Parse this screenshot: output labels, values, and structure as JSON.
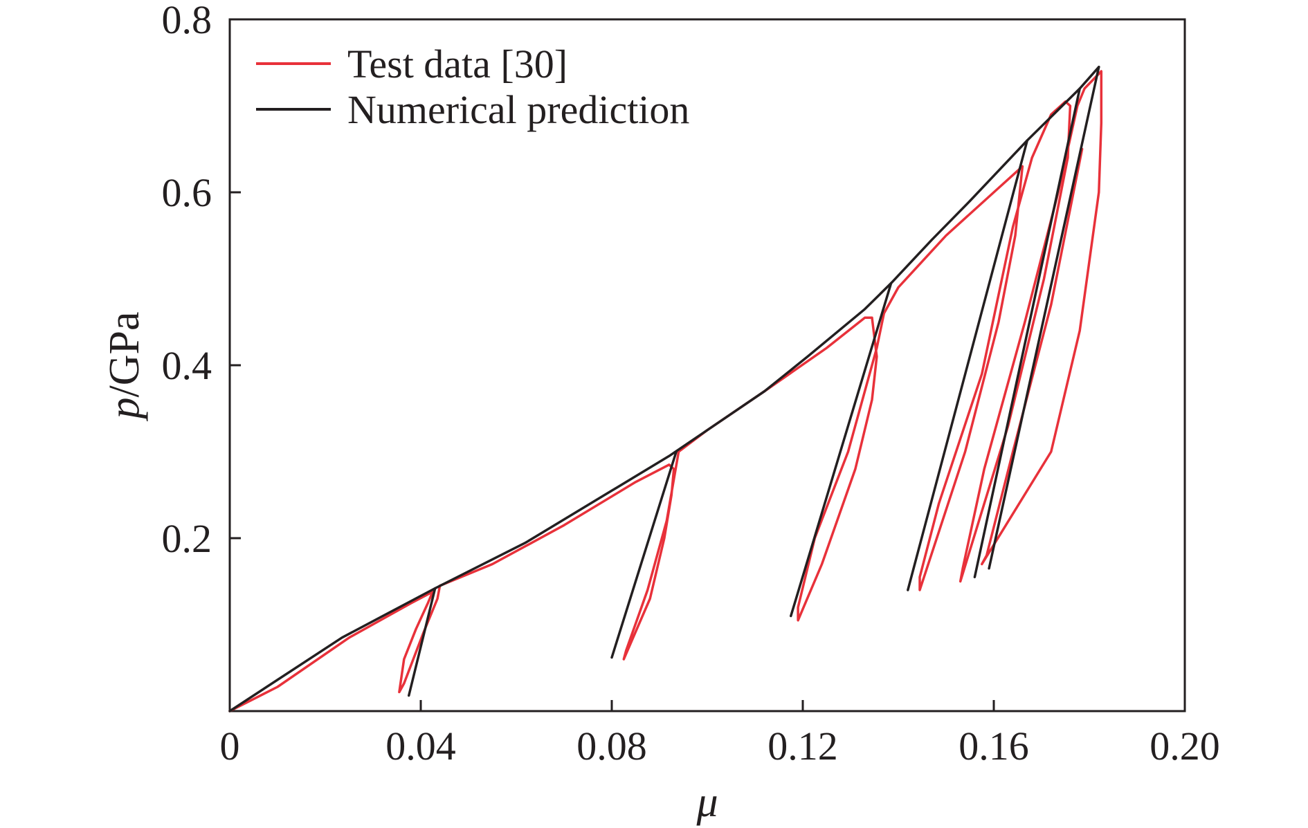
{
  "chart_data": {
    "type": "line",
    "xlabel_var": "μ",
    "xlabel_unit": "",
    "ylabel_var": "p",
    "ylabel_unit": "/GPa",
    "xlim": [
      0,
      0.2
    ],
    "ylim": [
      0,
      0.8
    ],
    "x_ticks": [
      0,
      0.04,
      0.08,
      0.12,
      0.16,
      0.2
    ],
    "x_tick_labels": [
      "0",
      "0.04",
      "0.08",
      "0.12",
      "0.16",
      "0.20"
    ],
    "y_ticks": [
      0.2,
      0.4,
      0.6,
      0.8
    ],
    "y_tick_labels": [
      "0.2",
      "0.4",
      "0.6",
      "0.8"
    ],
    "grid": false,
    "legend_position": "top-left",
    "series": [
      {
        "name": "Test data [30]",
        "color": "#e8313a",
        "x": [
          0.0,
          0.01,
          0.025,
          0.038,
          0.0425,
          0.0415,
          0.039,
          0.0365,
          0.0355,
          0.0365,
          0.0405,
          0.0435,
          0.044,
          0.055,
          0.07,
          0.085,
          0.092,
          0.093,
          0.0925,
          0.091,
          0.088,
          0.0825,
          0.083,
          0.0875,
          0.0915,
          0.094,
          0.1,
          0.112,
          0.125,
          0.133,
          0.1345,
          0.1355,
          0.1345,
          0.131,
          0.124,
          0.119,
          0.119,
          0.1225,
          0.1295,
          0.1355,
          0.137,
          0.14,
          0.15,
          0.16,
          0.165,
          0.166,
          0.1645,
          0.161,
          0.154,
          0.1445,
          0.1445,
          0.1485,
          0.1575,
          0.164,
          0.168,
          0.172,
          0.175,
          0.176,
          0.1755,
          0.1705,
          0.163,
          0.153,
          0.1535,
          0.158,
          0.1665,
          0.1735,
          0.1775,
          0.179,
          0.1825,
          0.1825,
          0.182,
          0.178,
          0.172,
          0.1575,
          0.1585,
          0.164,
          0.172,
          0.1785
        ],
        "y": [
          0.0,
          0.028,
          0.085,
          0.125,
          0.138,
          0.125,
          0.095,
          0.06,
          0.022,
          0.032,
          0.09,
          0.13,
          0.145,
          0.17,
          0.215,
          0.265,
          0.285,
          0.28,
          0.25,
          0.2,
          0.13,
          0.06,
          0.07,
          0.14,
          0.22,
          0.3,
          0.325,
          0.37,
          0.42,
          0.455,
          0.455,
          0.41,
          0.36,
          0.28,
          0.17,
          0.105,
          0.12,
          0.2,
          0.3,
          0.42,
          0.46,
          0.49,
          0.55,
          0.6,
          0.625,
          0.63,
          0.55,
          0.45,
          0.3,
          0.14,
          0.155,
          0.24,
          0.39,
          0.56,
          0.64,
          0.69,
          0.705,
          0.7,
          0.64,
          0.5,
          0.33,
          0.15,
          0.165,
          0.28,
          0.45,
          0.6,
          0.7,
          0.72,
          0.74,
          0.68,
          0.6,
          0.44,
          0.3,
          0.17,
          0.18,
          0.3,
          0.47,
          0.65
        ]
      },
      {
        "name": "Numerical prediction",
        "color": "#231f20",
        "x": [
          0.0,
          0.0235,
          0.043,
          0.062,
          0.08,
          0.092,
          0.1,
          0.112,
          0.121,
          0.133,
          0.1385,
          0.147,
          0.155,
          0.167,
          0.178,
          0.182
        ],
        "y": [
          0.0,
          0.085,
          0.142,
          0.195,
          0.255,
          0.295,
          0.325,
          0.37,
          0.41,
          0.465,
          0.495,
          0.545,
          0.59,
          0.66,
          0.72,
          0.745
        ]
      }
    ],
    "unloading_segments": [
      {
        "x": [
          0.043,
          0.0375
        ],
        "y": [
          0.142,
          0.018
        ]
      },
      {
        "x": [
          0.0935,
          0.08
        ],
        "y": [
          0.3,
          0.062
        ]
      },
      {
        "x": [
          0.1385,
          0.1175
        ],
        "y": [
          0.495,
          0.11
        ]
      },
      {
        "x": [
          0.167,
          0.142
        ],
        "y": [
          0.66,
          0.14
        ]
      },
      {
        "x": [
          0.178,
          0.156
        ],
        "y": [
          0.72,
          0.155
        ]
      },
      {
        "x": [
          0.182,
          0.159
        ],
        "y": [
          0.745,
          0.165
        ]
      }
    ]
  }
}
